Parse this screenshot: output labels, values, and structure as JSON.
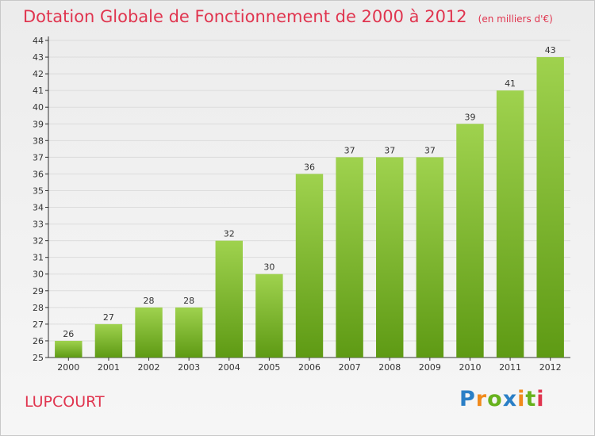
{
  "header": {
    "title": "Dotation Globale de Fonctionnement de 2000 à 2012",
    "subtitle": "(en milliers d'€)"
  },
  "footer": {
    "commune": "LUPCOURT",
    "brand": "Proxiti"
  },
  "colors": {
    "title": "#e0354f",
    "bar_top": "#9fd24e",
    "bar_bottom": "#5e9a14",
    "grid": "#dcdcdc",
    "axis": "#333333",
    "brand_P": "#2a7fc6",
    "brand_r": "#f08a1c",
    "brand_o": "#67b21d",
    "brand_x": "#2a7fc6",
    "brand_i": "#f08a1c",
    "brand_t": "#67b21d",
    "brand_i2": "#e0354f"
  },
  "chart_data": {
    "type": "bar",
    "title": "Dotation Globale de Fonctionnement de 2000 à 2012",
    "subtitle": "(en milliers d'€)",
    "categories": [
      "2000",
      "2001",
      "2002",
      "2003",
      "2004",
      "2005",
      "2006",
      "2007",
      "2008",
      "2009",
      "2010",
      "2011",
      "2012"
    ],
    "values": [
      26,
      27,
      28,
      28,
      32,
      30,
      36,
      37,
      37,
      37,
      39,
      41,
      43
    ],
    "ylim": [
      25,
      44
    ],
    "yticks": [
      25,
      26,
      27,
      28,
      29,
      30,
      31,
      32,
      33,
      34,
      35,
      36,
      37,
      38,
      39,
      40,
      41,
      42,
      43,
      44
    ],
    "grid": true,
    "data_labels": true,
    "legend": "none"
  }
}
